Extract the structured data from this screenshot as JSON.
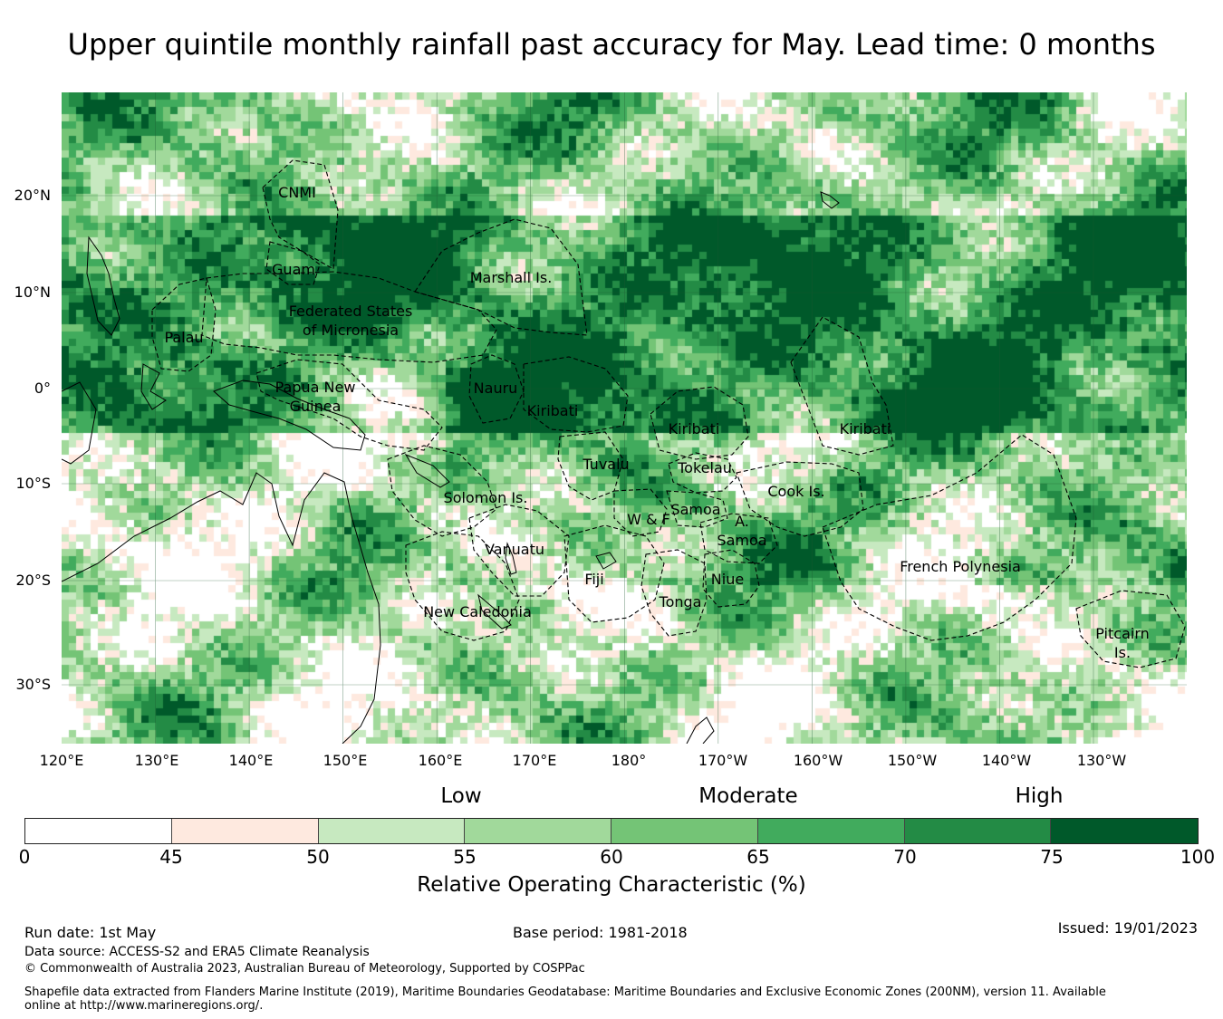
{
  "title": "Upper quintile monthly rainfall past accuracy for May. Lead time: 0 months",
  "map": {
    "lat_labels": [
      "20°N",
      "10°N",
      "0°",
      "10°S",
      "20°S",
      "30°S"
    ],
    "lon_labels": [
      "120°E",
      "130°E",
      "140°E",
      "150°E",
      "160°E",
      "170°E",
      "180°",
      "170°W",
      "160°W",
      "150°W",
      "140°W",
      "130°W"
    ],
    "regions": [
      {
        "name": "CNMI",
        "lines": [
          "CNMI"
        ]
      },
      {
        "name": "Guam",
        "lines": [
          "Guam"
        ]
      },
      {
        "name": "Marshall Is.",
        "lines": [
          "Marshall Is."
        ]
      },
      {
        "name": "Federated States of Micronesia",
        "lines": [
          "Federated States",
          "of Micronesia"
        ]
      },
      {
        "name": "Palau",
        "lines": [
          "Palau"
        ]
      },
      {
        "name": "Papua New Guinea",
        "lines": [
          "Papua New",
          "Guinea"
        ]
      },
      {
        "name": "Nauru",
        "lines": [
          "Nauru"
        ]
      },
      {
        "name": "Kiribati (Gilbert)",
        "lines": [
          "Kiribati"
        ]
      },
      {
        "name": "Kiribati (Phoenix)",
        "lines": [
          "Kiribati"
        ]
      },
      {
        "name": "Kiribati (Line)",
        "lines": [
          "Kiribati"
        ]
      },
      {
        "name": "Tuvalu",
        "lines": [
          "Tuvalu"
        ]
      },
      {
        "name": "Tokelau",
        "lines": [
          "Tokelau"
        ]
      },
      {
        "name": "Solomon Is.",
        "lines": [
          "Solomon Is."
        ]
      },
      {
        "name": "Cook Is.",
        "lines": [
          "Cook Is."
        ]
      },
      {
        "name": "W & F",
        "lines": [
          "W & F"
        ]
      },
      {
        "name": "Samoa",
        "lines": [
          "Samoa"
        ]
      },
      {
        "name": "A. Samoa",
        "lines": [
          "A.",
          "Samoa"
        ]
      },
      {
        "name": "Vanuatu",
        "lines": [
          "Vanuatu"
        ]
      },
      {
        "name": "Fiji",
        "lines": [
          "Fiji"
        ]
      },
      {
        "name": "Niue",
        "lines": [
          "Niue"
        ]
      },
      {
        "name": "Tonga",
        "lines": [
          "Tonga"
        ]
      },
      {
        "name": "French Polynesia",
        "lines": [
          "French Polynesia"
        ]
      },
      {
        "name": "New Caledonia",
        "lines": [
          "New Caledonia"
        ]
      },
      {
        "name": "Pitcairn Is.",
        "lines": [
          "Pitcairn",
          "Is."
        ]
      }
    ]
  },
  "legend": {
    "categories": [
      "Low",
      "Moderate",
      "High"
    ],
    "bins": [
      {
        "from": 0,
        "to": 45,
        "color": "#ffffff"
      },
      {
        "from": 45,
        "to": 50,
        "color": "#fee9df"
      },
      {
        "from": 50,
        "to": 55,
        "color": "#c7e9c0"
      },
      {
        "from": 55,
        "to": 60,
        "color": "#a1d99b"
      },
      {
        "from": 60,
        "to": 65,
        "color": "#74c476"
      },
      {
        "from": 65,
        "to": 70,
        "color": "#41ab5d"
      },
      {
        "from": 70,
        "to": 75,
        "color": "#238b45"
      },
      {
        "from": 75,
        "to": 100,
        "color": "#00592a"
      }
    ],
    "tick_labels": [
      "0",
      "45",
      "50",
      "55",
      "60",
      "65",
      "70",
      "75",
      "100"
    ],
    "title": "Relative Operating Characteristic (%)"
  },
  "footer": {
    "run_date": "Run date: 1st May",
    "base_period": "Base period: 1981-2018",
    "issued": "Issued: 19/01/2023",
    "data_source": "Data source: ACCESS-S2 and ERA5 Climate Reanalysis",
    "copyright": "© Commonwealth of Australia 2023, Australian Bureau of Meteorology, Supported by COSPPac",
    "shapefile": "Shapefile data extracted from Flanders Marine Institute (2019), Maritime Boundaries Geodatabase: Maritime Boundaries and Exclusive Economic Zones (200NM), version 11. Available online at http://www.marineregions.org/."
  }
}
